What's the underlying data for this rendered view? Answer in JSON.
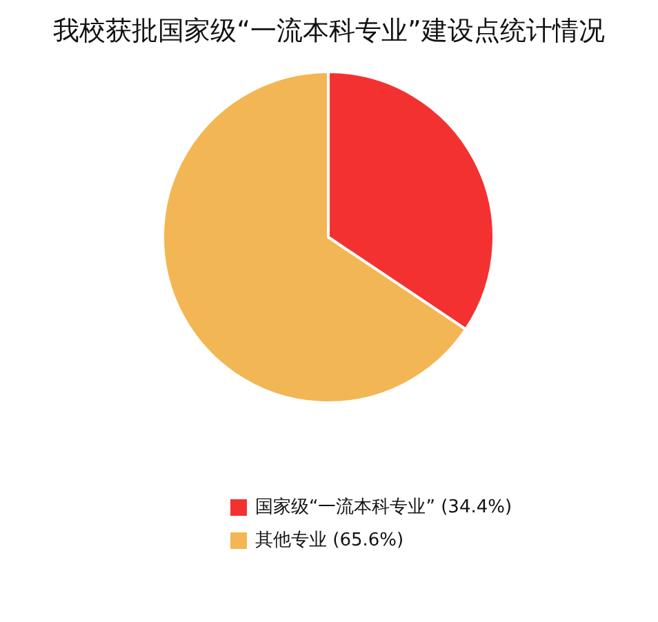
{
  "chart_data": {
    "type": "pie",
    "title": "我校获批国家级“一流本科专业”建设点统计情况",
    "categories": [
      "国家级“一流本科专业” (34.4%)",
      "其他专业 (65.6%)"
    ],
    "values": [
      34.4,
      65.6
    ],
    "colors": [
      "#f43131",
      "#f3b654"
    ],
    "legend": "bottom"
  }
}
